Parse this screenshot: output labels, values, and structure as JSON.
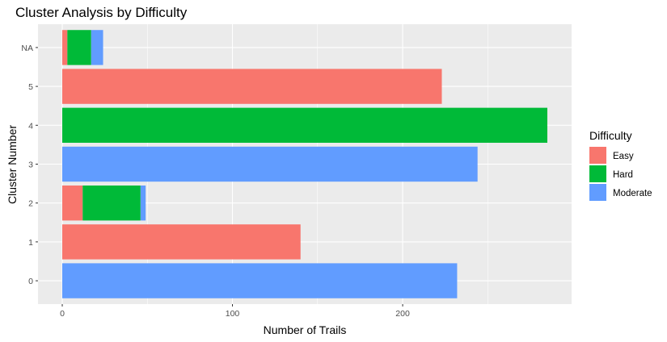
{
  "chart_data": {
    "type": "bar",
    "orientation": "horizontal",
    "stacked": true,
    "title": "Cluster Analysis by Difficulty",
    "xlabel": "Number of Trails",
    "ylabel": "Cluster Number",
    "categories": [
      "0",
      "1",
      "2",
      "3",
      "4",
      "5",
      "NA"
    ],
    "series": [
      {
        "name": "Easy",
        "color": "#F8766D",
        "values": [
          0,
          140,
          12,
          0,
          0,
          223,
          3
        ]
      },
      {
        "name": "Hard",
        "color": "#00BA38",
        "values": [
          0,
          0,
          34,
          0,
          285,
          0,
          14
        ]
      },
      {
        "name": "Moderate",
        "color": "#619CFF",
        "values": [
          232,
          0,
          3,
          244,
          0,
          0,
          7
        ]
      }
    ],
    "xlim": [
      -14.25,
      299.25
    ],
    "xticks": [
      "0",
      "100",
      "200"
    ],
    "grid": true,
    "panel_background": "#EBEBEB",
    "legend": {
      "title": "Difficulty",
      "position": "right",
      "labels": [
        "Easy",
        "Hard",
        "Moderate"
      ]
    }
  }
}
